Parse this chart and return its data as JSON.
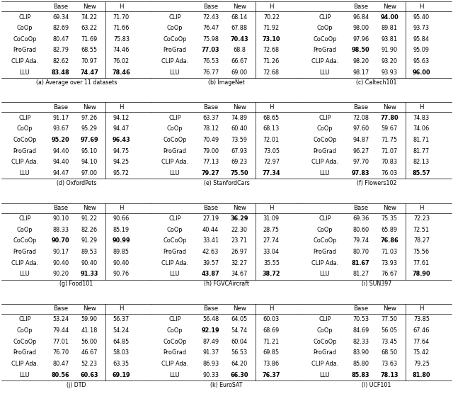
{
  "layout": [
    [
      "(a) Average over 11 datasets",
      "(b) ImageNet",
      "(c) Caltech101"
    ],
    [
      "(d) OxfordPets",
      "(e) StanfordCars",
      "(f) Flowers102"
    ],
    [
      "(g) Food101",
      "(h) FGVCAircraft",
      "(i) SUN397"
    ],
    [
      "(j) DTD",
      "(k) EuroSAT",
      "(l) UCF101"
    ]
  ],
  "tables": {
    "(a) Average over 11 datasets": {
      "methods": [
        "CLIP",
        "CoOp",
        "CoCoOp",
        "ProGrad",
        "CLIP Ada.",
        "LLU"
      ],
      "base": [
        "69.34",
        "82.69",
        "80.47",
        "82.79",
        "82.62",
        "83.48"
      ],
      "new": [
        "74.22",
        "63.22",
        "71.69",
        "68.55",
        "70.97",
        "74.47"
      ],
      "H": [
        "71.70",
        "71.66",
        "75.83",
        "74.46",
        "76.02",
        "78.46"
      ],
      "bold_base": [
        5
      ],
      "bold_new": [
        5
      ],
      "bold_H": [
        5
      ]
    },
    "(b) ImageNet": {
      "methods": [
        "CLIP",
        "CoOp",
        "CoCoOp",
        "ProGrad",
        "CLIP Ada.",
        "LLU"
      ],
      "base": [
        "72.43",
        "76.47",
        "75.98",
        "77.03",
        "76.53",
        "76.77"
      ],
      "new": [
        "68.14",
        "67.88",
        "70.43",
        "68.8",
        "66.67",
        "69.00"
      ],
      "H": [
        "70.22",
        "71.92",
        "73.10",
        "72.68",
        "71.26",
        "72.68"
      ],
      "bold_base": [
        3
      ],
      "bold_new": [
        2
      ],
      "bold_H": [
        2
      ]
    },
    "(c) Caltech101": {
      "methods": [
        "CLIP",
        "CoOp",
        "CoCoOp",
        "ProGrad",
        "CLIP Ada.",
        "LLU"
      ],
      "base": [
        "96.84",
        "98.00",
        "97.96",
        "98.50",
        "98.20",
        "98.17"
      ],
      "new": [
        "94.00",
        "89.81",
        "93.81",
        "91.90",
        "93.20",
        "93.93"
      ],
      "H": [
        "95.40",
        "93.73",
        "95.84",
        "95.09",
        "95.63",
        "96.00"
      ],
      "bold_base": [
        3
      ],
      "bold_new": [
        0
      ],
      "bold_H": [
        5
      ]
    },
    "(d) OxfordPets": {
      "methods": [
        "CLIP",
        "CoOp",
        "CoCoOp",
        "ProGrad",
        "CLIP Ada.",
        "LLU"
      ],
      "base": [
        "91.17",
        "93.67",
        "95.20",
        "94.40",
        "94.40",
        "94.47"
      ],
      "new": [
        "97.26",
        "95.29",
        "97.69",
        "95.10",
        "94.10",
        "97.00"
      ],
      "H": [
        "94.12",
        "94.47",
        "96.43",
        "94.75",
        "94.25",
        "95.72"
      ],
      "bold_base": [
        2
      ],
      "bold_new": [
        2
      ],
      "bold_H": [
        2
      ]
    },
    "(e) StanfordCars": {
      "methods": [
        "CLIP",
        "CoOp",
        "CoCoOp",
        "ProGrad",
        "CLIP Ada.",
        "LLU"
      ],
      "base": [
        "63.37",
        "78.12",
        "70.49",
        "79.00",
        "77.13",
        "79.27"
      ],
      "new": [
        "74.89",
        "60.40",
        "73.59",
        "67.93",
        "69.23",
        "75.50"
      ],
      "H": [
        "68.65",
        "68.13",
        "72.01",
        "73.05",
        "72.97",
        "77.34"
      ],
      "bold_base": [
        5
      ],
      "bold_new": [
        5
      ],
      "bold_H": [
        5
      ]
    },
    "(f) Flowers102": {
      "methods": [
        "CLIP",
        "CoOp",
        "CoCoOp",
        "ProGrad",
        "CLIP Ada.",
        "LLU"
      ],
      "base": [
        "72.08",
        "97.60",
        "94.87",
        "96.27",
        "97.70",
        "97.83"
      ],
      "new": [
        "77.80",
        "59.67",
        "71.75",
        "71.07",
        "70.83",
        "76.03"
      ],
      "H": [
        "74.83",
        "74.06",
        "81.71",
        "81.77",
        "82.13",
        "85.57"
      ],
      "bold_base": [
        5
      ],
      "bold_new": [
        0
      ],
      "bold_H": [
        5
      ]
    },
    "(g) Food101": {
      "methods": [
        "CLIP",
        "CoOp",
        "CoCoOp",
        "ProGrad",
        "CLIP Ada.",
        "LLU"
      ],
      "base": [
        "90.10",
        "88.33",
        "90.70",
        "90.17",
        "90.40",
        "90.20"
      ],
      "new": [
        "91.22",
        "82.26",
        "91.29",
        "89.53",
        "90.40",
        "91.33"
      ],
      "H": [
        "90.66",
        "85.19",
        "90.99",
        "89.85",
        "90.40",
        "90.76"
      ],
      "bold_base": [
        2
      ],
      "bold_new": [
        5
      ],
      "bold_H": [
        2
      ]
    },
    "(h) FGVCAircraft": {
      "methods": [
        "CLIP",
        "CoOp",
        "CoCoOp",
        "ProGrad",
        "CLIP Ada.",
        "LLU"
      ],
      "base": [
        "27.19",
        "40.44",
        "33.41",
        "42.63",
        "39.57",
        "43.87"
      ],
      "new": [
        "36.29",
        "22.30",
        "23.71",
        "26.97",
        "32.27",
        "34.67"
      ],
      "H": [
        "31.09",
        "28.75",
        "27.74",
        "33.04",
        "35.55",
        "38.72"
      ],
      "bold_base": [
        5
      ],
      "bold_new": [
        0
      ],
      "bold_H": [
        5
      ]
    },
    "(i) SUN397": {
      "methods": [
        "CLIP",
        "CoOp",
        "CoCoOp",
        "ProGrad",
        "CLIP Ada.",
        "LLU"
      ],
      "base": [
        "69.36",
        "80.60",
        "79.74",
        "80.70",
        "81.67",
        "81.27"
      ],
      "new": [
        "75.35",
        "65.89",
        "76.86",
        "71.03",
        "73.93",
        "76.67"
      ],
      "H": [
        "72.23",
        "72.51",
        "78.27",
        "75.56",
        "77.61",
        "78.90"
      ],
      "bold_base": [
        4
      ],
      "bold_new": [
        2
      ],
      "bold_H": [
        5
      ]
    },
    "(j) DTD": {
      "methods": [
        "CLIP",
        "CoOp",
        "CoCoOp",
        "ProGrad",
        "CLIP Ada.",
        "LLU"
      ],
      "base": [
        "53.24",
        "79.44",
        "77.01",
        "76.70",
        "80.47",
        "80.56"
      ],
      "new": [
        "59.90",
        "41.18",
        "56.00",
        "46.67",
        "52.23",
        "60.63"
      ],
      "H": [
        "56.37",
        "54.24",
        "64.85",
        "58.03",
        "63.35",
        "69.19"
      ],
      "bold_base": [
        5
      ],
      "bold_new": [
        5
      ],
      "bold_H": [
        5
      ]
    },
    "(k) EuroSAT": {
      "methods": [
        "CLIP",
        "CoOp",
        "CoCoOp",
        "ProGrad",
        "CLIP Ada.",
        "LLU"
      ],
      "base": [
        "56.48",
        "92.19",
        "87.49",
        "91.37",
        "86.93",
        "90.33"
      ],
      "new": [
        "64.05",
        "54.74",
        "60.04",
        "56.53",
        "64.20",
        "66.30"
      ],
      "H": [
        "60.03",
        "68.69",
        "71.21",
        "69.85",
        "73.86",
        "76.37"
      ],
      "bold_base": [
        1
      ],
      "bold_new": [
        5
      ],
      "bold_H": [
        5
      ]
    },
    "(l) UCF101": {
      "methods": [
        "CLIP",
        "CoOp",
        "CoCoOp",
        "ProGrad",
        "CLIP Ada.",
        "LLU"
      ],
      "base": [
        "70.53",
        "84.69",
        "82.33",
        "83.90",
        "85.80",
        "85.83"
      ],
      "new": [
        "77.50",
        "56.05",
        "73.45",
        "68.50",
        "73.63",
        "78.13"
      ],
      "H": [
        "73.85",
        "67.46",
        "77.64",
        "75.42",
        "79.25",
        "81.80"
      ],
      "bold_base": [
        5
      ],
      "bold_new": [
        5
      ],
      "bold_H": [
        5
      ]
    }
  },
  "fig_width": 6.4,
  "fig_height": 5.73,
  "dpi": 100
}
